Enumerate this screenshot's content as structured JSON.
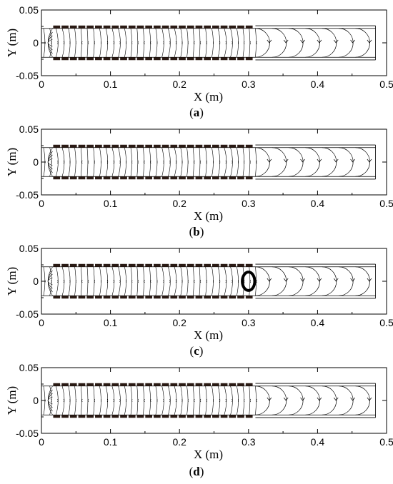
{
  "chart_data": [
    {
      "type": "line",
      "title": "",
      "xlabel": "X (m)",
      "ylabel": "Y (m)",
      "xlim": [
        0,
        0.5
      ],
      "ylim": [
        -0.05,
        0.05
      ],
      "x_ticks": [
        "0",
        "0.1",
        "0.2",
        "0.3",
        "0.4",
        "0.5"
      ],
      "y_ticks": [
        "0.05",
        "0",
        "-0.05"
      ],
      "channel_x": [
        0,
        0.484
      ],
      "wall_y": [
        -0.022,
        0.022
      ],
      "electrode_x_range": [
        0.016,
        0.307
      ],
      "electrode_count": 24,
      "streamline_region_x": [
        0.003,
        0.31
      ],
      "vortex_x": [
        0.31,
        0.455
      ],
      "vortex_count": 7,
      "grid": false,
      "caption": "(a)",
      "caption_letter": "a"
    },
    {
      "type": "line",
      "title": "",
      "xlabel": "X (m)",
      "ylabel": "Y (m)",
      "xlim": [
        0,
        0.5
      ],
      "ylim": [
        -0.05,
        0.05
      ],
      "x_ticks": [
        "0",
        "0.1",
        "0.2",
        "0.3",
        "0.4",
        "0.5"
      ],
      "y_ticks": [
        "0.05",
        "0",
        "-0.05"
      ],
      "channel_x": [
        0,
        0.484
      ],
      "wall_y": [
        -0.022,
        0.022
      ],
      "electrode_x_range": [
        0.016,
        0.307
      ],
      "electrode_count": 24,
      "streamline_region_x": [
        0.003,
        0.31
      ],
      "vortex_x": [
        0.31,
        0.455
      ],
      "vortex_count": 7,
      "grid": false,
      "caption": "(b)",
      "caption_letter": "b"
    },
    {
      "type": "line",
      "title": "",
      "xlabel": "X (m)",
      "ylabel": "Y (m)",
      "xlim": [
        0,
        0.5
      ],
      "ylim": [
        -0.05,
        0.05
      ],
      "x_ticks": [
        "0",
        "0.1",
        "0.2",
        "0.3",
        "0.4",
        "0.5"
      ],
      "y_ticks": [
        "0.05",
        "0",
        "-0.05"
      ],
      "channel_x": [
        0,
        0.484
      ],
      "wall_y": [
        -0.022,
        0.022
      ],
      "electrode_x_range": [
        0.016,
        0.307
      ],
      "electrode_count": 24,
      "streamline_region_x": [
        0.003,
        0.31
      ],
      "vortex_x": [
        0.31,
        0.455
      ],
      "vortex_count": 7,
      "grid": false,
      "highlight": {
        "x": 0.3,
        "y": 0.0,
        "rx": 0.009,
        "ry": 0.014
      },
      "caption": "(c)",
      "caption_letter": "c"
    },
    {
      "type": "line",
      "title": "",
      "xlabel": "X (m)",
      "ylabel": "Y (m)",
      "xlim": [
        0,
        0.5
      ],
      "ylim": [
        -0.05,
        0.05
      ],
      "x_ticks": [
        "0",
        "0.1",
        "0.2",
        "0.3",
        "0.4",
        "0.5"
      ],
      "y_ticks": [
        "0.05",
        "0",
        "-0.05"
      ],
      "channel_x": [
        0,
        0.484
      ],
      "wall_y": [
        -0.022,
        0.022
      ],
      "electrode_x_range": [
        0.016,
        0.307
      ],
      "electrode_count": 24,
      "streamline_region_x": [
        0.003,
        0.31
      ],
      "vortex_x": [
        0.31,
        0.455
      ],
      "vortex_count": 7,
      "grid": false,
      "caption": "(d)",
      "caption_letter": "d"
    }
  ],
  "colors": {
    "line": "#000000",
    "electrode": "#2a1a14",
    "background": "#ffffff"
  }
}
